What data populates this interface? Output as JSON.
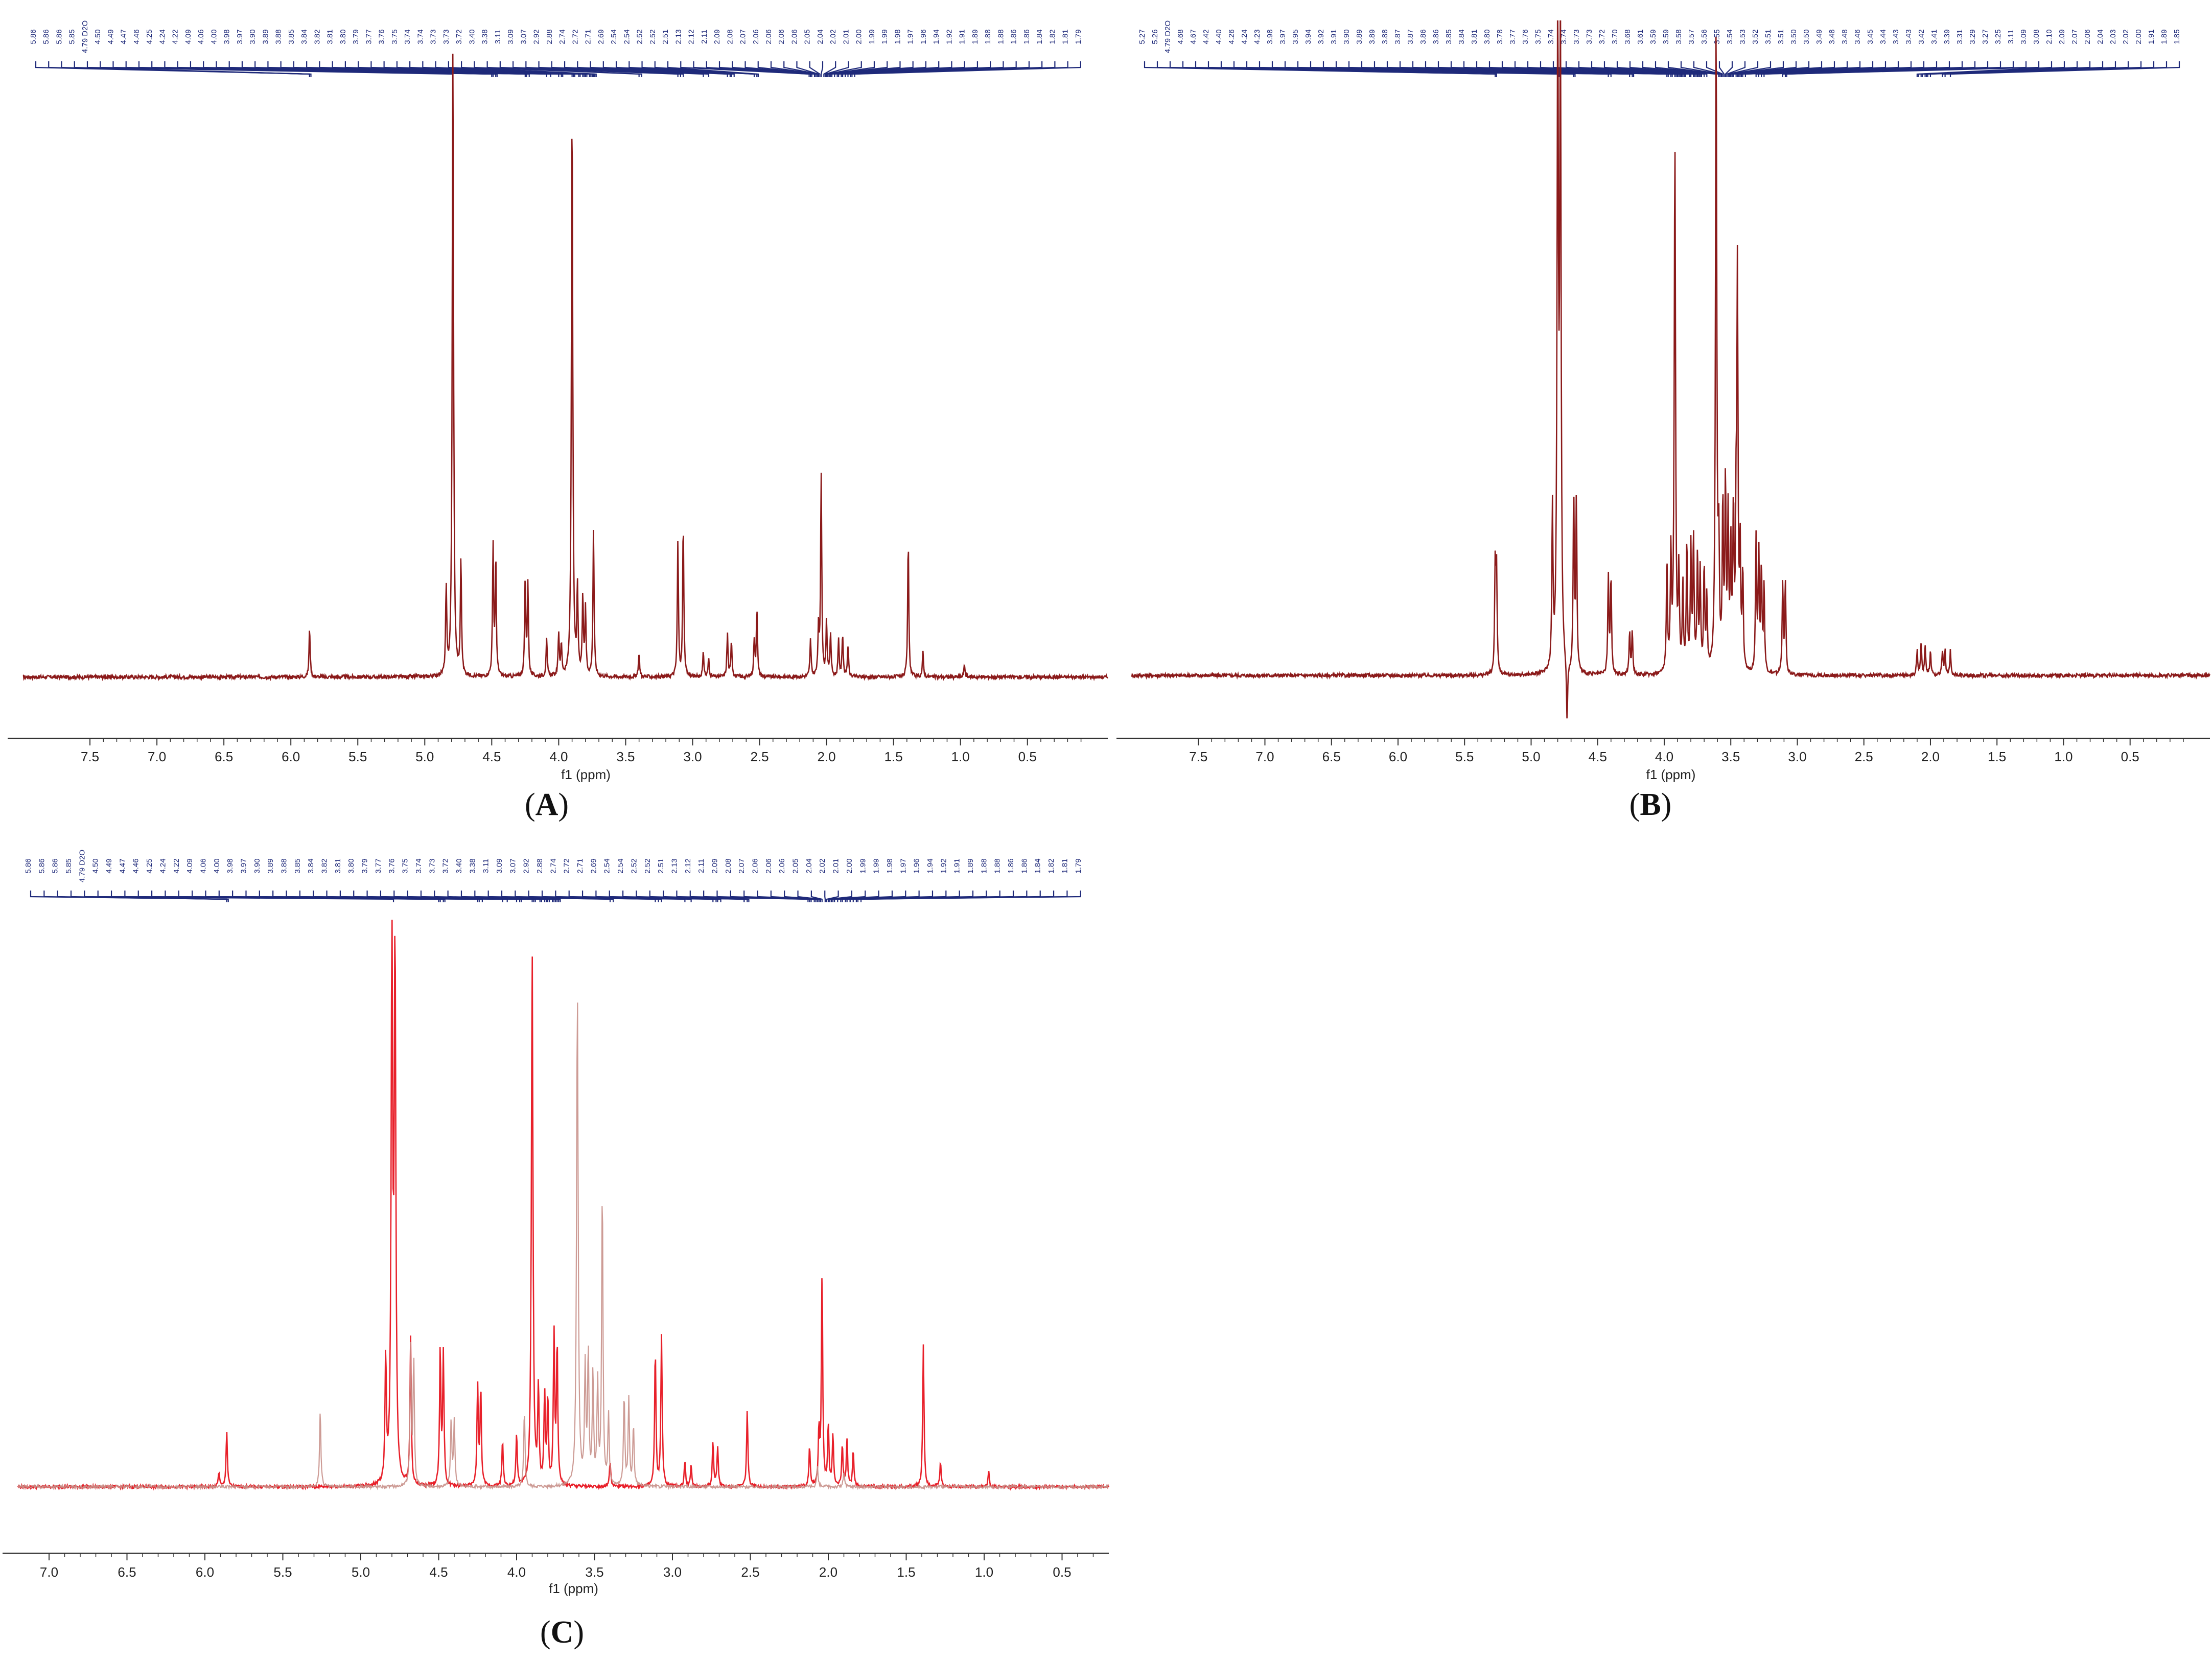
{
  "chart_data": [
    {
      "type": "line",
      "panel_label": "A",
      "xlabel": "f1 (ppm)",
      "xlim": [
        8.0,
        -0.1
      ],
      "x_reversed": true,
      "x_ticks": [
        "7.5",
        "7.0",
        "6.5",
        "6.0",
        "5.5",
        "5.0",
        "4.5",
        "4.0",
        "3.5",
        "3.0",
        "2.5",
        "2.0",
        "1.5",
        "1.0",
        "0.5"
      ],
      "baseline_color": "#7a1c1c",
      "integral_color": "#1f2a7a",
      "peak_labels": [
        "5.86",
        "5.86",
        "5.86",
        "5.85",
        "4.79 D2O",
        "4.50",
        "4.49",
        "4.47",
        "4.46",
        "4.25",
        "4.24",
        "4.22",
        "4.09",
        "4.06",
        "4.00",
        "3.98",
        "3.97",
        "3.90",
        "3.89",
        "3.88",
        "3.85",
        "3.84",
        "3.82",
        "3.81",
        "3.80",
        "3.79",
        "3.77",
        "3.76",
        "3.75",
        "3.74",
        "3.74",
        "3.73",
        "3.73",
        "3.72",
        "3.40",
        "3.38",
        "3.11",
        "3.09",
        "3.07",
        "2.92",
        "2.88",
        "2.74",
        "2.72",
        "2.71",
        "2.69",
        "2.54",
        "2.54",
        "2.52",
        "2.52",
        "2.51",
        "2.13",
        "2.12",
        "2.11",
        "2.09",
        "2.08",
        "2.07",
        "2.06",
        "2.06",
        "2.06",
        "2.06",
        "2.05",
        "2.04",
        "2.02",
        "2.01",
        "2.00",
        "1.99",
        "1.99",
        "1.98",
        "1.97",
        "1.96",
        "1.94",
        "1.92",
        "1.91",
        "1.89",
        "1.88",
        "1.88",
        "1.86",
        "1.86",
        "1.84",
        "1.82",
        "1.81",
        "1.79"
      ],
      "series": [
        {
          "color": "#8b1a1a",
          "peaks": [
            {
              "x": 5.86,
              "y": 0.08
            },
            {
              "x": 4.84,
              "y": 0.14
            },
            {
              "x": 4.79,
              "y": 1.02
            },
            {
              "x": 4.73,
              "y": 0.19
            },
            {
              "x": 4.49,
              "y": 0.21
            },
            {
              "x": 4.47,
              "y": 0.19
            },
            {
              "x": 4.25,
              "y": 0.16
            },
            {
              "x": 4.23,
              "y": 0.15
            },
            {
              "x": 4.09,
              "y": 0.06
            },
            {
              "x": 4.0,
              "y": 0.07
            },
            {
              "x": 3.98,
              "y": 0.05
            },
            {
              "x": 3.9,
              "y": 0.93
            },
            {
              "x": 3.86,
              "y": 0.14
            },
            {
              "x": 3.82,
              "y": 0.13
            },
            {
              "x": 3.8,
              "y": 0.11
            },
            {
              "x": 3.74,
              "y": 0.24
            },
            {
              "x": 3.4,
              "y": 0.04
            },
            {
              "x": 3.11,
              "y": 0.22
            },
            {
              "x": 3.07,
              "y": 0.25
            },
            {
              "x": 2.92,
              "y": 0.04
            },
            {
              "x": 2.88,
              "y": 0.03
            },
            {
              "x": 2.74,
              "y": 0.07
            },
            {
              "x": 2.71,
              "y": 0.06
            },
            {
              "x": 2.54,
              "y": 0.06
            },
            {
              "x": 2.52,
              "y": 0.11
            },
            {
              "x": 2.12,
              "y": 0.06
            },
            {
              "x": 2.06,
              "y": 0.08
            },
            {
              "x": 2.04,
              "y": 0.33
            },
            {
              "x": 2.0,
              "y": 0.09
            },
            {
              "x": 1.97,
              "y": 0.07
            },
            {
              "x": 1.91,
              "y": 0.06
            },
            {
              "x": 1.88,
              "y": 0.07
            },
            {
              "x": 1.84,
              "y": 0.05
            },
            {
              "x": 1.39,
              "y": 0.22
            },
            {
              "x": 1.28,
              "y": 0.04
            },
            {
              "x": 0.97,
              "y": 0.02
            }
          ]
        }
      ]
    },
    {
      "type": "line",
      "panel_label": "B",
      "xlabel": "f1 (ppm)",
      "xlim": [
        8.0,
        -0.1
      ],
      "x_reversed": true,
      "x_ticks": [
        "7.5",
        "7.0",
        "6.5",
        "6.0",
        "5.5",
        "5.0",
        "4.5",
        "4.0",
        "3.5",
        "3.0",
        "2.5",
        "2.0",
        "1.5",
        "1.0",
        "0.5"
      ],
      "baseline_color": "#7a1c1c",
      "integral_color": "#1f2a7a",
      "peak_labels": [
        "5.27",
        "5.26",
        "4.79 D2O",
        "4.68",
        "4.67",
        "4.42",
        "4.40",
        "4.26",
        "4.24",
        "4.23",
        "3.98",
        "3.97",
        "3.95",
        "3.94",
        "3.92",
        "3.91",
        "3.90",
        "3.89",
        "3.89",
        "3.88",
        "3.87",
        "3.87",
        "3.86",
        "3.86",
        "3.85",
        "3.84",
        "3.81",
        "3.80",
        "3.78",
        "3.77",
        "3.76",
        "3.75",
        "3.74",
        "3.74",
        "3.73",
        "3.73",
        "3.72",
        "3.70",
        "3.68",
        "3.61",
        "3.59",
        "3.59",
        "3.58",
        "3.57",
        "3.56",
        "3.55",
        "3.54",
        "3.53",
        "3.52",
        "3.51",
        "3.51",
        "3.50",
        "3.50",
        "3.49",
        "3.48",
        "3.48",
        "3.46",
        "3.45",
        "3.44",
        "3.43",
        "3.43",
        "3.42",
        "3.41",
        "3.39",
        "3.31",
        "3.29",
        "3.27",
        "3.25",
        "3.11",
        "3.09",
        "3.08",
        "2.10",
        "2.09",
        "2.07",
        "2.06",
        "2.04",
        "2.03",
        "2.02",
        "2.00",
        "1.91",
        "1.89",
        "1.85"
      ],
      "series": [
        {
          "color": "#8b1a1a",
          "peaks": [
            {
              "x": 5.27,
              "y": 0.17
            },
            {
              "x": 5.26,
              "y": 0.17
            },
            {
              "x": 4.84,
              "y": 0.26
            },
            {
              "x": 4.8,
              "y": 1.05
            },
            {
              "x": 4.78,
              "y": 1.05
            },
            {
              "x": 4.73,
              "y": -0.1
            },
            {
              "x": 4.68,
              "y": 0.29
            },
            {
              "x": 4.66,
              "y": 0.28
            },
            {
              "x": 4.42,
              "y": 0.16
            },
            {
              "x": 4.4,
              "y": 0.16
            },
            {
              "x": 4.26,
              "y": 0.07
            },
            {
              "x": 4.24,
              "y": 0.07
            },
            {
              "x": 3.98,
              "y": 0.18
            },
            {
              "x": 3.95,
              "y": 0.19
            },
            {
              "x": 3.92,
              "y": 0.86
            },
            {
              "x": 3.89,
              "y": 0.16
            },
            {
              "x": 3.86,
              "y": 0.14
            },
            {
              "x": 3.83,
              "y": 0.21
            },
            {
              "x": 3.8,
              "y": 0.2
            },
            {
              "x": 3.78,
              "y": 0.22
            },
            {
              "x": 3.75,
              "y": 0.19
            },
            {
              "x": 3.73,
              "y": 0.16
            },
            {
              "x": 3.7,
              "y": 0.17
            },
            {
              "x": 3.68,
              "y": 0.12
            },
            {
              "x": 3.61,
              "y": 1.05
            },
            {
              "x": 3.59,
              "y": 0.18
            },
            {
              "x": 3.56,
              "y": 0.27
            },
            {
              "x": 3.54,
              "y": 0.3
            },
            {
              "x": 3.52,
              "y": 0.25
            },
            {
              "x": 3.5,
              "y": 0.2
            },
            {
              "x": 3.48,
              "y": 0.26
            },
            {
              "x": 3.46,
              "y": 0.22
            },
            {
              "x": 3.45,
              "y": 0.63
            },
            {
              "x": 3.43,
              "y": 0.2
            },
            {
              "x": 3.41,
              "y": 0.16
            },
            {
              "x": 3.31,
              "y": 0.22
            },
            {
              "x": 3.29,
              "y": 0.2
            },
            {
              "x": 3.27,
              "y": 0.17
            },
            {
              "x": 3.25,
              "y": 0.14
            },
            {
              "x": 3.11,
              "y": 0.15
            },
            {
              "x": 3.09,
              "y": 0.15
            },
            {
              "x": 2.1,
              "y": 0.04
            },
            {
              "x": 2.07,
              "y": 0.05
            },
            {
              "x": 2.04,
              "y": 0.05
            },
            {
              "x": 2.0,
              "y": 0.04
            },
            {
              "x": 1.91,
              "y": 0.04
            },
            {
              "x": 1.89,
              "y": 0.04
            },
            {
              "x": 1.85,
              "y": 0.04
            }
          ]
        }
      ]
    },
    {
      "type": "line",
      "panel_label": "C",
      "xlabel": "f1 (ppm)",
      "xlim": [
        7.2,
        0.2
      ],
      "x_reversed": true,
      "x_ticks": [
        "7.0",
        "6.5",
        "6.0",
        "5.5",
        "5.0",
        "4.5",
        "4.0",
        "3.5",
        "3.0",
        "2.5",
        "2.0",
        "1.5",
        "1.0",
        "0.5"
      ],
      "baseline_color": "#7a1c1c",
      "integral_color": "#1f2a7a",
      "peak_labels": [
        "5.86",
        "5.86",
        "5.86",
        "5.85",
        "4.79 D2O",
        "4.50",
        "4.49",
        "4.47",
        "4.46",
        "4.25",
        "4.24",
        "4.22",
        "4.09",
        "4.06",
        "4.00",
        "3.98",
        "3.97",
        "3.90",
        "3.89",
        "3.88",
        "3.85",
        "3.84",
        "3.82",
        "3.81",
        "3.80",
        "3.79",
        "3.77",
        "3.76",
        "3.75",
        "3.74",
        "3.73",
        "3.72",
        "3.40",
        "3.38",
        "3.11",
        "3.09",
        "3.07",
        "2.92",
        "2.88",
        "2.74",
        "2.72",
        "2.71",
        "2.69",
        "2.54",
        "2.54",
        "2.52",
        "2.52",
        "2.51",
        "2.13",
        "2.12",
        "2.11",
        "2.09",
        "2.08",
        "2.07",
        "2.06",
        "2.06",
        "2.06",
        "2.05",
        "2.04",
        "2.02",
        "2.01",
        "2.00",
        "1.99",
        "1.99",
        "1.98",
        "1.97",
        "1.96",
        "1.94",
        "1.92",
        "1.91",
        "1.89",
        "1.88",
        "1.88",
        "1.86",
        "1.86",
        "1.84",
        "1.82",
        "1.81",
        "1.79"
      ],
      "series": [
        {
          "color": "#e8202a",
          "peaks": [
            {
              "x": 5.91,
              "y": 0.03
            },
            {
              "x": 5.86,
              "y": 0.11
            },
            {
              "x": 4.84,
              "y": 0.25
            },
            {
              "x": 4.8,
              "y": 1.05
            },
            {
              "x": 4.78,
              "y": 1.05
            },
            {
              "x": 4.68,
              "y": 0.29
            },
            {
              "x": 4.49,
              "y": 0.27
            },
            {
              "x": 4.47,
              "y": 0.26
            },
            {
              "x": 4.25,
              "y": 0.2
            },
            {
              "x": 4.23,
              "y": 0.19
            },
            {
              "x": 4.09,
              "y": 0.09
            },
            {
              "x": 4.0,
              "y": 0.1
            },
            {
              "x": 3.9,
              "y": 1.05
            },
            {
              "x": 3.86,
              "y": 0.19
            },
            {
              "x": 3.82,
              "y": 0.18
            },
            {
              "x": 3.8,
              "y": 0.17
            },
            {
              "x": 3.76,
              "y": 0.3
            },
            {
              "x": 3.74,
              "y": 0.28
            },
            {
              "x": 3.4,
              "y": 0.05
            },
            {
              "x": 3.11,
              "y": 0.27
            },
            {
              "x": 3.07,
              "y": 0.3
            },
            {
              "x": 2.92,
              "y": 0.05
            },
            {
              "x": 2.88,
              "y": 0.04
            },
            {
              "x": 2.74,
              "y": 0.09
            },
            {
              "x": 2.71,
              "y": 0.08
            },
            {
              "x": 2.52,
              "y": 0.15
            },
            {
              "x": 2.12,
              "y": 0.08
            },
            {
              "x": 2.06,
              "y": 0.11
            },
            {
              "x": 2.04,
              "y": 0.42
            },
            {
              "x": 2.0,
              "y": 0.12
            },
            {
              "x": 1.97,
              "y": 0.1
            },
            {
              "x": 1.91,
              "y": 0.08
            },
            {
              "x": 1.88,
              "y": 0.09
            },
            {
              "x": 1.84,
              "y": 0.07
            },
            {
              "x": 1.39,
              "y": 0.28
            },
            {
              "x": 1.28,
              "y": 0.05
            },
            {
              "x": 0.97,
              "y": 0.03
            }
          ]
        },
        {
          "color": "#c8908a",
          "peaks": [
            {
              "x": 5.26,
              "y": 0.15
            },
            {
              "x": 4.68,
              "y": 0.27
            },
            {
              "x": 4.66,
              "y": 0.25
            },
            {
              "x": 4.42,
              "y": 0.13
            },
            {
              "x": 4.4,
              "y": 0.13
            },
            {
              "x": 3.95,
              "y": 0.15
            },
            {
              "x": 3.61,
              "y": 0.98
            },
            {
              "x": 3.56,
              "y": 0.23
            },
            {
              "x": 3.54,
              "y": 0.26
            },
            {
              "x": 3.51,
              "y": 0.22
            },
            {
              "x": 3.48,
              "y": 0.2
            },
            {
              "x": 3.45,
              "y": 0.59
            },
            {
              "x": 3.41,
              "y": 0.14
            },
            {
              "x": 3.31,
              "y": 0.18
            },
            {
              "x": 3.28,
              "y": 0.17
            },
            {
              "x": 3.25,
              "y": 0.12
            },
            {
              "x": 2.07,
              "y": 0.04
            },
            {
              "x": 1.9,
              "y": 0.03
            }
          ]
        }
      ]
    }
  ]
}
